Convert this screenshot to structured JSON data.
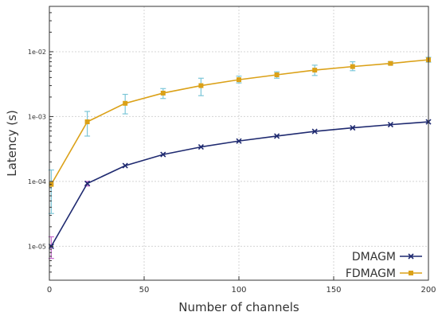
{
  "chart_data": {
    "type": "line",
    "xlabel": "Number of channels",
    "ylabel": "Latency  (s)",
    "xlim": [
      0,
      200
    ],
    "ylim": [
      3e-06,
      0.05
    ],
    "yscale": "log",
    "xticks": [
      0,
      50,
      100,
      150,
      200
    ],
    "xtick_labels": [
      "0",
      "50",
      "100",
      "150",
      "200"
    ],
    "yticks": [
      1e-05,
      0.0001,
      0.001,
      0.01
    ],
    "ytick_labels": [
      "1e-05",
      "1e-04",
      "1e-03",
      "1e-02"
    ],
    "grid": true,
    "legend_position": "bottom-right",
    "series": [
      {
        "name": "DMAGM",
        "color": "#1f2a70",
        "marker": "x",
        "x": [
          1,
          20,
          40,
          60,
          80,
          100,
          120,
          140,
          160,
          180,
          200
        ],
        "y": [
          1e-05,
          9.3e-05,
          0.000175,
          0.00026,
          0.00034,
          0.00042,
          0.0005,
          0.00059,
          0.00067,
          0.00075,
          0.00083
        ],
        "error_low": [
          6.5e-06,
          8.5e-05,
          null,
          null,
          null,
          null,
          null,
          null,
          null,
          null,
          null
        ],
        "error_high": [
          1.4e-05,
          0.0001,
          null,
          null,
          null,
          null,
          null,
          null,
          null,
          null,
          null
        ],
        "error_color": "#c86ccf"
      },
      {
        "name": "FDMAGM",
        "color": "#dba118",
        "marker": "square",
        "x": [
          1,
          20,
          40,
          60,
          80,
          100,
          120,
          140,
          160,
          180,
          200
        ],
        "y": [
          9e-05,
          0.00083,
          0.0016,
          0.0023,
          0.003,
          0.0037,
          0.0044,
          0.0052,
          0.0059,
          0.0066,
          0.0075
        ],
        "error_low": [
          3.2e-05,
          0.0005,
          0.0011,
          0.0019,
          0.0021,
          0.0033,
          0.0039,
          0.0043,
          0.0051,
          0.0063,
          0.0069
        ],
        "error_high": [
          0.00015,
          0.0012,
          0.0022,
          0.0027,
          0.0039,
          0.0042,
          0.0049,
          0.0062,
          0.007,
          0.007,
          0.0082
        ],
        "error_color": "#7cc6d8"
      }
    ]
  }
}
